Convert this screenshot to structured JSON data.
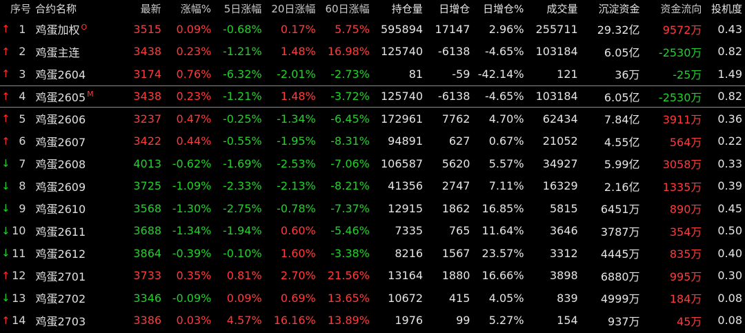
{
  "columns": {
    "seq": "序号",
    "name": "合约名称",
    "last": "最新",
    "chg": "涨幅%",
    "chg5d": "5日涨幅",
    "chg20d": "20日涨幅",
    "chg60d": "60日涨幅",
    "oi": "持仓量",
    "daily_add": "日增仓",
    "daily_add_pct": "日增仓%",
    "volume": "成交量",
    "fund": "沉淀资金",
    "flow": "资金流向",
    "spec": "投机度"
  },
  "colors": {
    "up": "#ff3b3b",
    "down": "#22d12a",
    "neutral": "#e6e6e6",
    "background": "#000000"
  },
  "rows": [
    {
      "arrow": "↑",
      "arrow_dir": "up",
      "seq": "1",
      "name": "鸡蛋加权",
      "badge": "O",
      "last": "3515",
      "last_dir": "up",
      "chg": "0.09%",
      "chg_dir": "up",
      "chg5d": "-0.68%",
      "chg5d_dir": "down",
      "chg20d": "0.17%",
      "chg20d_dir": "up",
      "chg60d": "5.75%",
      "chg60d_dir": "up",
      "oi": "595894",
      "daily_add": "17147",
      "daily_add_pct": "2.96%",
      "volume": "255711",
      "fund": "29.32亿",
      "flow": "9572万",
      "flow_dir": "up",
      "spec": "0.43"
    },
    {
      "arrow": "↑",
      "arrow_dir": "up",
      "seq": "2",
      "name": "鸡蛋主连",
      "badge": "",
      "last": "3438",
      "last_dir": "up",
      "chg": "0.23%",
      "chg_dir": "up",
      "chg5d": "-1.21%",
      "chg5d_dir": "down",
      "chg20d": "1.48%",
      "chg20d_dir": "up",
      "chg60d": "16.98%",
      "chg60d_dir": "up",
      "oi": "125740",
      "daily_add": "-6138",
      "daily_add_pct": "-4.65%",
      "volume": "103184",
      "fund": "6.05亿",
      "flow": "-2530万",
      "flow_dir": "down",
      "spec": "0.82"
    },
    {
      "arrow": "↑",
      "arrow_dir": "up",
      "seq": "3",
      "name": "鸡蛋2604",
      "badge": "",
      "last": "3174",
      "last_dir": "up",
      "chg": "0.76%",
      "chg_dir": "up",
      "chg5d": "-6.32%",
      "chg5d_dir": "down",
      "chg20d": "-2.01%",
      "chg20d_dir": "down",
      "chg60d": "-2.73%",
      "chg60d_dir": "down",
      "oi": "81",
      "daily_add": "-59",
      "daily_add_pct": "-42.14%",
      "volume": "121",
      "fund": "36万",
      "flow": "-25万",
      "flow_dir": "down",
      "spec": "1.49"
    },
    {
      "arrow": "↑",
      "arrow_dir": "up",
      "seq": "4",
      "name": "鸡蛋2605",
      "badge": "M",
      "last": "3438",
      "last_dir": "up",
      "chg": "0.23%",
      "chg_dir": "up",
      "chg5d": "-1.21%",
      "chg5d_dir": "down",
      "chg20d": "1.48%",
      "chg20d_dir": "up",
      "chg60d": "-3.72%",
      "chg60d_dir": "down",
      "oi": "125740",
      "daily_add": "-6138",
      "daily_add_pct": "-4.65%",
      "volume": "103184",
      "fund": "6.05亿",
      "flow": "-2530万",
      "flow_dir": "down",
      "spec": "0.82",
      "selected": true
    },
    {
      "arrow": "↑",
      "arrow_dir": "up",
      "seq": "5",
      "name": "鸡蛋2606",
      "badge": "",
      "last": "3237",
      "last_dir": "up",
      "chg": "0.47%",
      "chg_dir": "up",
      "chg5d": "-0.25%",
      "chg5d_dir": "down",
      "chg20d": "-1.34%",
      "chg20d_dir": "down",
      "chg60d": "-6.45%",
      "chg60d_dir": "down",
      "oi": "172961",
      "daily_add": "7762",
      "daily_add_pct": "4.70%",
      "volume": "62434",
      "fund": "7.84亿",
      "flow": "3911万",
      "flow_dir": "up",
      "spec": "0.36"
    },
    {
      "arrow": "↑",
      "arrow_dir": "up",
      "seq": "6",
      "name": "鸡蛋2607",
      "badge": "",
      "last": "3422",
      "last_dir": "up",
      "chg": "0.44%",
      "chg_dir": "up",
      "chg5d": "-0.55%",
      "chg5d_dir": "down",
      "chg20d": "-1.95%",
      "chg20d_dir": "down",
      "chg60d": "-8.31%",
      "chg60d_dir": "down",
      "oi": "94891",
      "daily_add": "627",
      "daily_add_pct": "0.67%",
      "volume": "21052",
      "fund": "4.55亿",
      "flow": "564万",
      "flow_dir": "up",
      "spec": "0.22"
    },
    {
      "arrow": "↓",
      "arrow_dir": "down",
      "seq": "7",
      "name": "鸡蛋2608",
      "badge": "",
      "last": "4013",
      "last_dir": "down",
      "chg": "-0.62%",
      "chg_dir": "down",
      "chg5d": "-1.69%",
      "chg5d_dir": "down",
      "chg20d": "-2.53%",
      "chg20d_dir": "down",
      "chg60d": "-7.06%",
      "chg60d_dir": "down",
      "oi": "106587",
      "daily_add": "5620",
      "daily_add_pct": "5.57%",
      "volume": "34927",
      "fund": "5.99亿",
      "flow": "3058万",
      "flow_dir": "up",
      "spec": "0.33"
    },
    {
      "arrow": "↓",
      "arrow_dir": "down",
      "seq": "8",
      "name": "鸡蛋2609",
      "badge": "",
      "last": "3725",
      "last_dir": "down",
      "chg": "-1.09%",
      "chg_dir": "down",
      "chg5d": "-2.33%",
      "chg5d_dir": "down",
      "chg20d": "-2.13%",
      "chg20d_dir": "down",
      "chg60d": "-8.21%",
      "chg60d_dir": "down",
      "oi": "41356",
      "daily_add": "2747",
      "daily_add_pct": "7.11%",
      "volume": "16329",
      "fund": "2.16亿",
      "flow": "1335万",
      "flow_dir": "up",
      "spec": "0.39"
    },
    {
      "arrow": "↓",
      "arrow_dir": "down",
      "seq": "9",
      "name": "鸡蛋2610",
      "badge": "",
      "last": "3568",
      "last_dir": "down",
      "chg": "-1.30%",
      "chg_dir": "down",
      "chg5d": "-2.75%",
      "chg5d_dir": "down",
      "chg20d": "-0.78%",
      "chg20d_dir": "down",
      "chg60d": "-7.37%",
      "chg60d_dir": "down",
      "oi": "12915",
      "daily_add": "1862",
      "daily_add_pct": "16.85%",
      "volume": "5815",
      "fund": "6451万",
      "flow": "890万",
      "flow_dir": "up",
      "spec": "0.45"
    },
    {
      "arrow": "↓",
      "arrow_dir": "down",
      "seq": "10",
      "name": "鸡蛋2611",
      "badge": "",
      "last": "3688",
      "last_dir": "down",
      "chg": "-1.34%",
      "chg_dir": "down",
      "chg5d": "-1.94%",
      "chg5d_dir": "down",
      "chg20d": "0.60%",
      "chg20d_dir": "up",
      "chg60d": "-5.46%",
      "chg60d_dir": "down",
      "oi": "7335",
      "daily_add": "765",
      "daily_add_pct": "11.64%",
      "volume": "3646",
      "fund": "3787万",
      "flow": "354万",
      "flow_dir": "up",
      "spec": "0.50"
    },
    {
      "arrow": "↓",
      "arrow_dir": "down",
      "seq": "11",
      "name": "鸡蛋2612",
      "badge": "",
      "last": "3864",
      "last_dir": "down",
      "chg": "-0.39%",
      "chg_dir": "down",
      "chg5d": "-0.10%",
      "chg5d_dir": "down",
      "chg20d": "1.60%",
      "chg20d_dir": "up",
      "chg60d": "-3.38%",
      "chg60d_dir": "down",
      "oi": "8216",
      "daily_add": "1567",
      "daily_add_pct": "23.57%",
      "volume": "3312",
      "fund": "4445万",
      "flow": "835万",
      "flow_dir": "up",
      "spec": "0.40"
    },
    {
      "arrow": "↑",
      "arrow_dir": "up",
      "seq": "12",
      "name": "鸡蛋2701",
      "badge": "",
      "last": "3733",
      "last_dir": "up",
      "chg": "0.35%",
      "chg_dir": "up",
      "chg5d": "0.81%",
      "chg5d_dir": "up",
      "chg20d": "2.70%",
      "chg20d_dir": "up",
      "chg60d": "21.56%",
      "chg60d_dir": "up",
      "oi": "13164",
      "daily_add": "1880",
      "daily_add_pct": "16.66%",
      "volume": "3898",
      "fund": "6880万",
      "flow": "995万",
      "flow_dir": "up",
      "spec": "0.30"
    },
    {
      "arrow": "↓",
      "arrow_dir": "down",
      "seq": "13",
      "name": "鸡蛋2702",
      "badge": "",
      "last": "3346",
      "last_dir": "down",
      "chg": "-0.09%",
      "chg_dir": "down",
      "chg5d": "0.09%",
      "chg5d_dir": "up",
      "chg20d": "0.69%",
      "chg20d_dir": "up",
      "chg60d": "13.65%",
      "chg60d_dir": "up",
      "oi": "10672",
      "daily_add": "415",
      "daily_add_pct": "4.05%",
      "volume": "839",
      "fund": "4999万",
      "flow": "184万",
      "flow_dir": "up",
      "spec": "0.08"
    },
    {
      "arrow": "↑",
      "arrow_dir": "up",
      "seq": "14",
      "name": "鸡蛋2703",
      "badge": "",
      "last": "3386",
      "last_dir": "up",
      "chg": "0.03%",
      "chg_dir": "up",
      "chg5d": "4.57%",
      "chg5d_dir": "up",
      "chg20d": "16.16%",
      "chg20d_dir": "up",
      "chg60d": "13.89%",
      "chg60d_dir": "up",
      "oi": "1976",
      "daily_add": "99",
      "daily_add_pct": "5.27%",
      "volume": "154",
      "fund": "937万",
      "flow": "45万",
      "flow_dir": "up",
      "spec": "0.08"
    }
  ]
}
